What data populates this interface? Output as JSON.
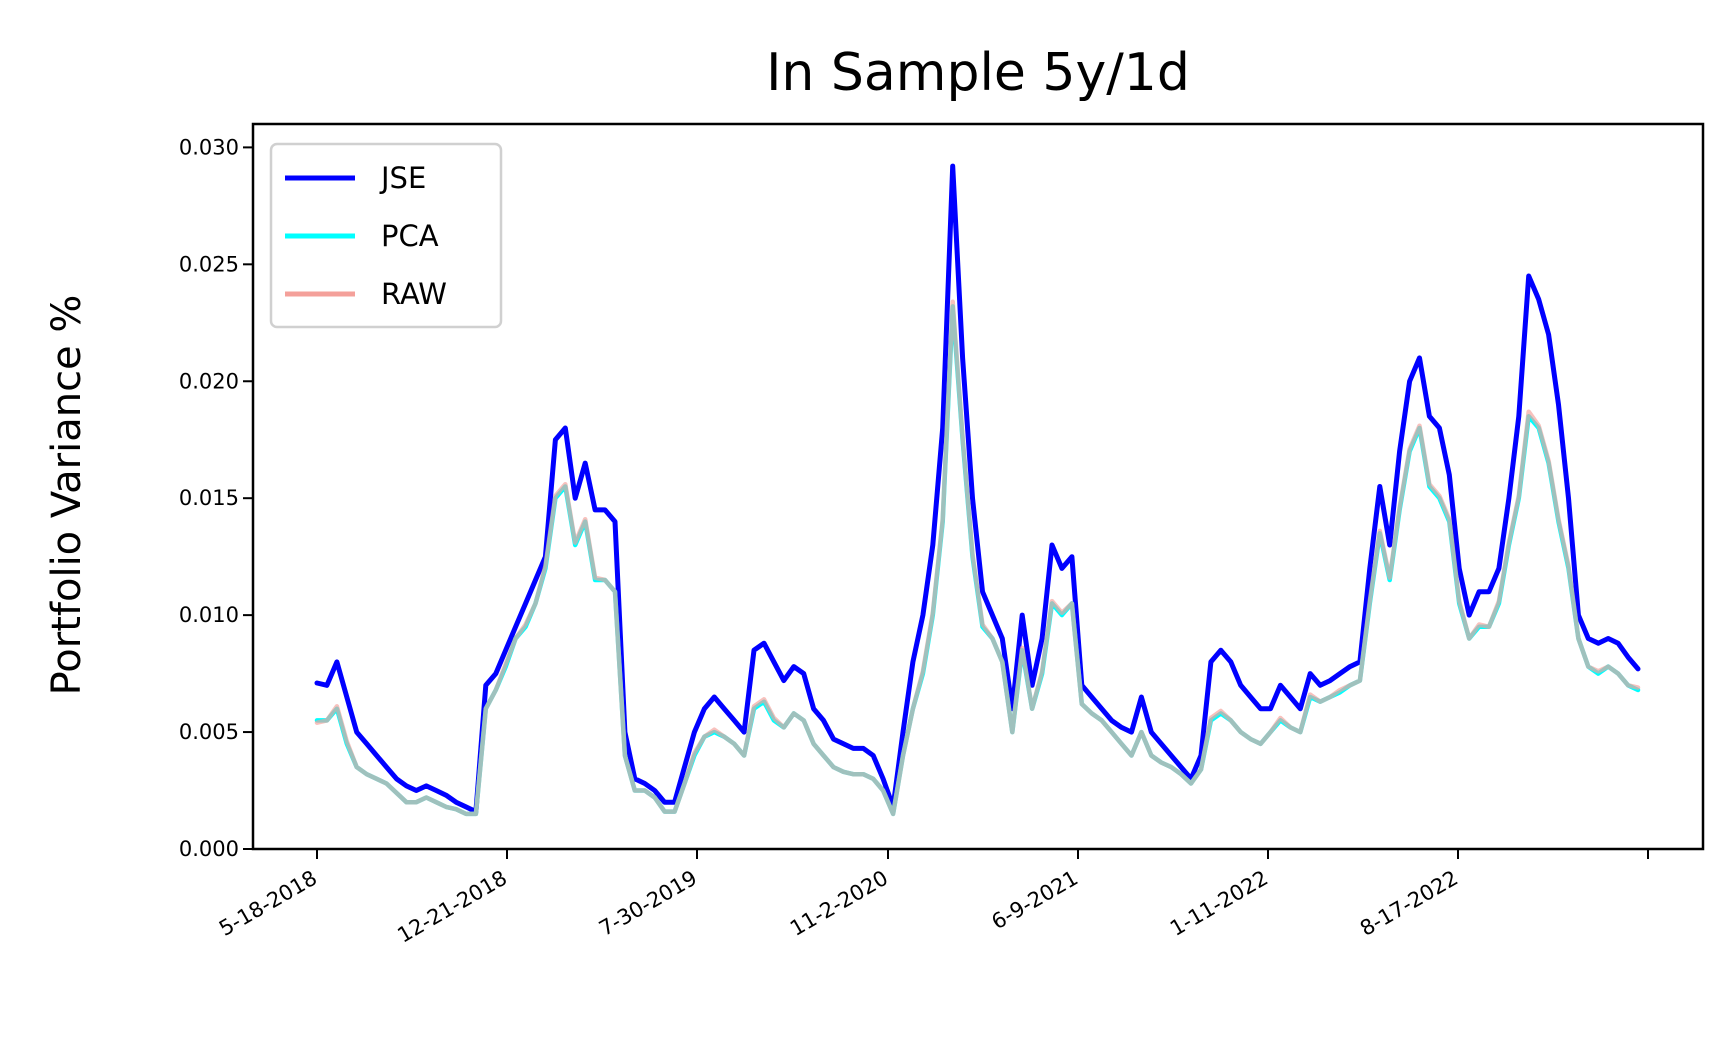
{
  "chart_data": {
    "type": "line",
    "title": "In Sample 5y/1d",
    "xlabel": "",
    "ylabel": "Portfolio Variance %",
    "ylim": [
      0,
      0.031
    ],
    "y_ticks": [
      "0.000",
      "0.005",
      "0.010",
      "0.015",
      "0.020",
      "0.025",
      "0.030"
    ],
    "y_tick_values": [
      0,
      0.005,
      0.01,
      0.015,
      0.02,
      0.025,
      0.03
    ],
    "x_ticks": [
      "5-18-2018",
      "12-21-2018",
      "7-30-2019",
      "11-2-2020",
      "6-9-2021",
      "1-11-2022",
      "8-17-2022",
      ""
    ],
    "legend_position": "top-left",
    "grid": false,
    "series": [
      {
        "name": "JSE",
        "color": "#0000ff",
        "values": [
          0.0071,
          0.007,
          0.008,
          0.0065,
          0.005,
          0.0045,
          0.004,
          0.0035,
          0.003,
          0.0027,
          0.0025,
          0.0027,
          0.0025,
          0.0023,
          0.002,
          0.0018,
          0.0016,
          0.007,
          0.0075,
          0.0085,
          0.0095,
          0.0105,
          0.0115,
          0.0125,
          0.0175,
          0.018,
          0.015,
          0.0165,
          0.0145,
          0.0145,
          0.014,
          0.005,
          0.003,
          0.0028,
          0.0025,
          0.002,
          0.002,
          0.0035,
          0.005,
          0.006,
          0.0065,
          0.006,
          0.0055,
          0.005,
          0.0085,
          0.0088,
          0.008,
          0.0072,
          0.0078,
          0.0075,
          0.006,
          0.0055,
          0.0047,
          0.0045,
          0.0043,
          0.0043,
          0.004,
          0.003,
          0.0018,
          0.005,
          0.008,
          0.01,
          0.013,
          0.018,
          0.0292,
          0.021,
          0.015,
          0.011,
          0.01,
          0.009,
          0.006,
          0.01,
          0.007,
          0.009,
          0.013,
          0.012,
          0.0125,
          0.007,
          0.0065,
          0.006,
          0.0055,
          0.0052,
          0.005,
          0.0065,
          0.005,
          0.0045,
          0.004,
          0.0035,
          0.003,
          0.004,
          0.008,
          0.0085,
          0.008,
          0.007,
          0.0065,
          0.006,
          0.006,
          0.007,
          0.0065,
          0.006,
          0.0075,
          0.007,
          0.0072,
          0.0075,
          0.0078,
          0.008,
          0.012,
          0.0155,
          0.013,
          0.017,
          0.02,
          0.021,
          0.0185,
          0.018,
          0.016,
          0.012,
          0.01,
          0.011,
          0.011,
          0.012,
          0.015,
          0.0185,
          0.0245,
          0.0235,
          0.022,
          0.019,
          0.015,
          0.01,
          0.009,
          0.0088,
          0.009,
          0.0088,
          0.0082,
          0.0077
        ]
      },
      {
        "name": "PCA",
        "color": "#00ffff",
        "values": [
          0.0055,
          0.0055,
          0.006,
          0.0045,
          0.0035,
          0.0032,
          0.003,
          0.0028,
          0.0024,
          0.002,
          0.002,
          0.0022,
          0.002,
          0.0018,
          0.0017,
          0.0015,
          0.0015,
          0.006,
          0.0068,
          0.0078,
          0.009,
          0.0095,
          0.0105,
          0.012,
          0.015,
          0.0155,
          0.013,
          0.014,
          0.0115,
          0.0115,
          0.011,
          0.004,
          0.0025,
          0.0025,
          0.0022,
          0.0016,
          0.0016,
          0.0028,
          0.004,
          0.0048,
          0.005,
          0.0048,
          0.0045,
          0.004,
          0.006,
          0.0063,
          0.0055,
          0.0052,
          0.0058,
          0.0055,
          0.0045,
          0.004,
          0.0035,
          0.0033,
          0.0032,
          0.0032,
          0.003,
          0.0025,
          0.0015,
          0.004,
          0.006,
          0.0075,
          0.01,
          0.014,
          0.0232,
          0.0175,
          0.0125,
          0.0095,
          0.009,
          0.008,
          0.005,
          0.0085,
          0.006,
          0.0075,
          0.0105,
          0.01,
          0.0105,
          0.0062,
          0.0058,
          0.0055,
          0.005,
          0.0045,
          0.004,
          0.005,
          0.004,
          0.0037,
          0.0035,
          0.0032,
          0.0028,
          0.0034,
          0.0055,
          0.0058,
          0.0055,
          0.005,
          0.0047,
          0.0045,
          0.005,
          0.0055,
          0.0052,
          0.005,
          0.0065,
          0.0063,
          0.0065,
          0.0067,
          0.007,
          0.0072,
          0.0105,
          0.0135,
          0.0115,
          0.0145,
          0.017,
          0.018,
          0.0155,
          0.015,
          0.014,
          0.0105,
          0.009,
          0.0095,
          0.0095,
          0.0105,
          0.013,
          0.015,
          0.0185,
          0.018,
          0.0165,
          0.014,
          0.012,
          0.009,
          0.0078,
          0.0075,
          0.0078,
          0.0075,
          0.007,
          0.0068
        ]
      },
      {
        "name": "RAW",
        "color": "#f4a09a",
        "values": [
          0.0054,
          0.0055,
          0.0061,
          0.0046,
          0.0035,
          0.0032,
          0.003,
          0.0028,
          0.0024,
          0.002,
          0.002,
          0.0022,
          0.002,
          0.0018,
          0.0017,
          0.0015,
          0.0015,
          0.006,
          0.0068,
          0.0079,
          0.009,
          0.0096,
          0.0105,
          0.0121,
          0.0151,
          0.0156,
          0.0131,
          0.0141,
          0.0116,
          0.0115,
          0.011,
          0.004,
          0.0025,
          0.0025,
          0.0022,
          0.0016,
          0.0016,
          0.0028,
          0.0041,
          0.0048,
          0.0051,
          0.0048,
          0.0045,
          0.004,
          0.0061,
          0.0064,
          0.0056,
          0.0052,
          0.0058,
          0.0055,
          0.0045,
          0.004,
          0.0035,
          0.0033,
          0.0032,
          0.0032,
          0.003,
          0.0025,
          0.0015,
          0.004,
          0.006,
          0.0076,
          0.0101,
          0.0141,
          0.0234,
          0.0176,
          0.0126,
          0.0096,
          0.009,
          0.008,
          0.005,
          0.0086,
          0.006,
          0.0076,
          0.0106,
          0.0101,
          0.0105,
          0.0062,
          0.0058,
          0.0055,
          0.005,
          0.0045,
          0.004,
          0.005,
          0.004,
          0.0037,
          0.0035,
          0.0032,
          0.0028,
          0.0034,
          0.0056,
          0.0059,
          0.0055,
          0.005,
          0.0047,
          0.0045,
          0.005,
          0.0056,
          0.0052,
          0.005,
          0.0066,
          0.0063,
          0.0065,
          0.0068,
          0.007,
          0.0072,
          0.0106,
          0.0136,
          0.0116,
          0.0146,
          0.0171,
          0.0181,
          0.0156,
          0.0151,
          0.0141,
          0.0106,
          0.009,
          0.0096,
          0.0095,
          0.0106,
          0.0131,
          0.0151,
          0.0187,
          0.0181,
          0.0166,
          0.0141,
          0.0121,
          0.009,
          0.0078,
          0.0076,
          0.0078,
          0.0075,
          0.007,
          0.0069
        ]
      }
    ]
  }
}
